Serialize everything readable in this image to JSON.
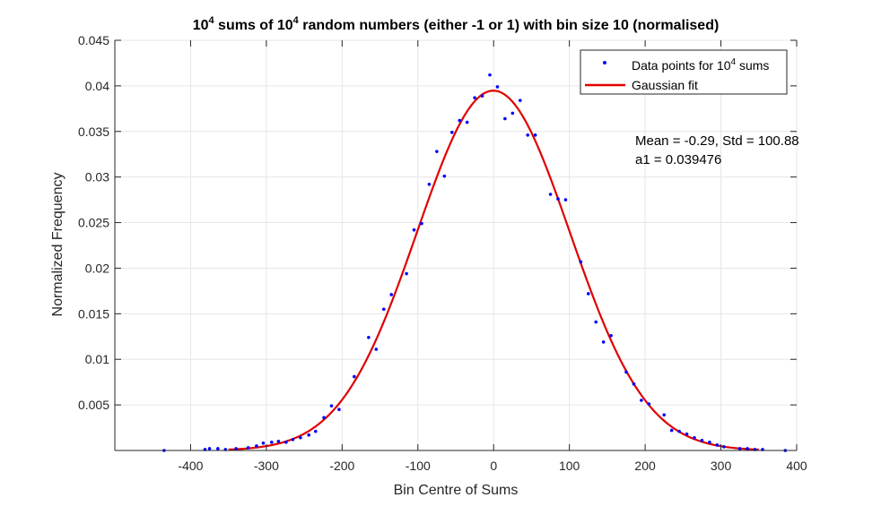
{
  "chart_data": {
    "type": "scatter",
    "title": {
      "part1": "10",
      "sup1": "4",
      "part2": " sums of 10",
      "sup2": "4",
      "part3": " random numbers (either -1 or 1) with bin size 10 (normalised)"
    },
    "xlabel": "Bin Centre of Sums",
    "ylabel": "Normalized Frequency",
    "xlim": [
      -500,
      400
    ],
    "ylim": [
      0,
      0.045
    ],
    "xticks": [
      -400,
      -300,
      -200,
      -100,
      0,
      100,
      200,
      300,
      400
    ],
    "yticks": [
      0.005,
      0.01,
      0.015,
      0.02,
      0.025,
      0.03,
      0.035,
      0.04,
      0.045
    ],
    "ytick_labels": [
      "0.005",
      "0.01",
      "0.015",
      "0.02",
      "0.025",
      "0.03",
      "0.035",
      "0.04",
      "0.045"
    ],
    "grid": true,
    "legend_position": "top-right",
    "legend": {
      "points_label": "Data points for 10",
      "points_label_sup": "4",
      "points_label_end": " sums",
      "fit_label": "Gaussian fit"
    },
    "annotation": {
      "line1": "Mean = -0.29, Std = 100.88",
      "line2": "a1 = 0.039476"
    },
    "colors": {
      "points": "#0000ff",
      "fit": "#e00000",
      "grid": "#e6e6e6",
      "axis": "#262626"
    },
    "series": [
      {
        "name": "Data points for 10^4 sums",
        "kind": "points",
        "points": [
          [
            -435,
            0.0
          ],
          [
            -381,
            0.0001
          ],
          [
            -375,
            0.0002
          ],
          [
            -364,
            0.0002
          ],
          [
            -354,
            0.0001
          ],
          [
            -340,
            0.0002
          ],
          [
            -324,
            0.0003
          ],
          [
            -313,
            0.0005
          ],
          [
            -304,
            0.0008
          ],
          [
            -293,
            0.0009
          ],
          [
            -284,
            0.001
          ],
          [
            -274,
            0.0009
          ],
          [
            -265,
            0.0012
          ],
          [
            -255,
            0.0014
          ],
          [
            -244,
            0.0017
          ],
          [
            -235,
            0.0021
          ],
          [
            -224,
            0.0036
          ],
          [
            -214,
            0.0049
          ],
          [
            -204,
            0.0045
          ],
          [
            -184,
            0.0081
          ],
          [
            -165,
            0.0124
          ],
          [
            -155,
            0.0111
          ],
          [
            -145,
            0.0155
          ],
          [
            -135,
            0.0171
          ],
          [
            -115,
            0.0194
          ],
          [
            -105,
            0.0242
          ],
          [
            -95,
            0.0249
          ],
          [
            -85,
            0.0292
          ],
          [
            -75,
            0.0328
          ],
          [
            -65,
            0.0301
          ],
          [
            -55,
            0.0349
          ],
          [
            -45,
            0.0362
          ],
          [
            -35,
            0.036
          ],
          [
            -25,
            0.0387
          ],
          [
            -15,
            0.0389
          ],
          [
            -5,
            0.0412
          ],
          [
            5,
            0.0399
          ],
          [
            15,
            0.0364
          ],
          [
            25,
            0.037
          ],
          [
            35,
            0.0384
          ],
          [
            45,
            0.0346
          ],
          [
            55,
            0.0346
          ],
          [
            75,
            0.0281
          ],
          [
            85,
            0.0276
          ],
          [
            95,
            0.0275
          ],
          [
            115,
            0.0207
          ],
          [
            125,
            0.0172
          ],
          [
            135,
            0.0141
          ],
          [
            145,
            0.0119
          ],
          [
            155,
            0.0126
          ],
          [
            175,
            0.0086
          ],
          [
            185,
            0.0073
          ],
          [
            195,
            0.0055
          ],
          [
            205,
            0.0051
          ],
          [
            225,
            0.0039
          ],
          [
            235,
            0.0022
          ],
          [
            245,
            0.0021
          ],
          [
            255,
            0.0018
          ],
          [
            265,
            0.0014
          ],
          [
            275,
            0.0011
          ],
          [
            285,
            0.0009
          ],
          [
            295,
            0.0006
          ],
          [
            304,
            0.0004
          ],
          [
            325,
            0.0002
          ],
          [
            335,
            0.0002
          ],
          [
            345,
            0.0001
          ],
          [
            355,
            0.0001
          ],
          [
            385,
            0.0
          ]
        ]
      },
      {
        "name": "Gaussian fit",
        "kind": "gaussian",
        "a1": 0.039476,
        "mean": -0.29,
        "std": 100.88,
        "x_range": [
          -350,
          350
        ]
      }
    ]
  }
}
